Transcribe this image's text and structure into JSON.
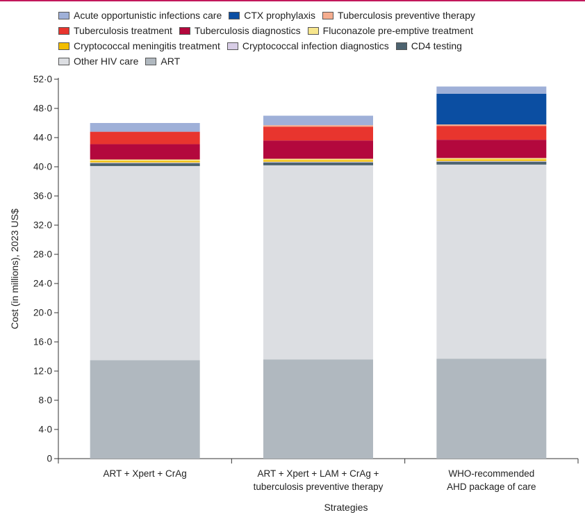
{
  "chart_data": {
    "type": "bar",
    "stacked": true,
    "title": "",
    "xlabel": "Strategies",
    "ylabel": "Cost (in millions), 2023 US$",
    "ylim": [
      0,
      52
    ],
    "yticks": [
      0,
      4,
      8,
      12,
      16,
      20,
      24,
      28,
      32,
      36,
      40,
      44,
      48,
      52
    ],
    "ytick_labels": [
      "0",
      "4·0",
      "8·0",
      "12·0",
      "16·0",
      "20·0",
      "24·0",
      "28·0",
      "32·0",
      "36·0",
      "40·0",
      "44·0",
      "48·0",
      "52·0"
    ],
    "categories": [
      [
        "ART + Xpert + CrAg"
      ],
      [
        "ART + Xpert + LAM + CrAg +",
        "tuberculosis preventive therapy"
      ],
      [
        "WHO-recommended",
        "AHD package of care"
      ]
    ],
    "legend_rows": [
      [
        0,
        1,
        2
      ],
      [
        3,
        4,
        5
      ],
      [
        6,
        7,
        8
      ],
      [
        9,
        10
      ]
    ],
    "series": [
      {
        "name": "Acute opportunistic infections care",
        "color": "#9fb0d8",
        "values": [
          1.2,
          1.3,
          1.0
        ]
      },
      {
        "name": "CTX prophylaxis",
        "color": "#0b4ea2",
        "values": [
          0.0,
          0.0,
          4.2
        ]
      },
      {
        "name": "Tuberculosis preventive therapy",
        "color": "#f5ad8f",
        "values": [
          0.0,
          0.2,
          0.2
        ]
      },
      {
        "name": "Tuberculosis treatment",
        "color": "#e8352e",
        "values": [
          1.7,
          1.9,
          1.9
        ]
      },
      {
        "name": "Tuberculosis diagnostics",
        "color": "#b3083d",
        "values": [
          2.1,
          2.5,
          2.5
        ]
      },
      {
        "name": "Fluconazole pre-emptive treatment",
        "color": "#f7e68d",
        "values": [
          0.2,
          0.2,
          0.2
        ]
      },
      {
        "name": "Cryptococcal meningitis treatment",
        "color": "#f2bd00",
        "values": [
          0.2,
          0.2,
          0.2
        ]
      },
      {
        "name": "Cryptococcal infection diagnostics",
        "color": "#d8cde6",
        "values": [
          0.1,
          0.1,
          0.1
        ]
      },
      {
        "name": "CD4 testing",
        "color": "#4d6370",
        "values": [
          0.4,
          0.4,
          0.4
        ]
      },
      {
        "name": "Other HIV care",
        "color": "#dcdee2",
        "values": [
          26.6,
          26.6,
          26.6
        ]
      },
      {
        "name": "ART",
        "color": "#b0b8bf",
        "values": [
          13.5,
          13.6,
          13.7
        ]
      }
    ],
    "stack_order_bottom_to_top": [
      10,
      9,
      8,
      7,
      6,
      5,
      4,
      3,
      2,
      1,
      0
    ]
  }
}
